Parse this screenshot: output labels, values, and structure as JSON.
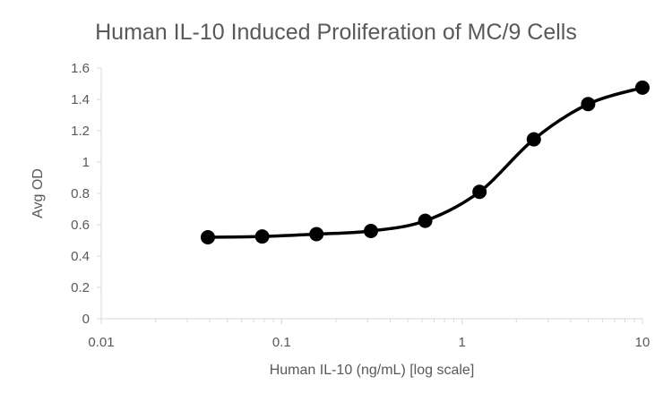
{
  "chart_data": {
    "type": "line",
    "title": "Human IL-10 Induced Proliferation of MC/9 Cells",
    "xlabel": "Human IL-10 (ng/mL) [log scale]",
    "ylabel": "Avg OD",
    "xscale": "log",
    "xlim": [
      0.01,
      10
    ],
    "ylim": [
      0,
      1.6
    ],
    "xticks": [
      "0.01",
      "0.1",
      "1",
      "10"
    ],
    "xtick_values": [
      0.01,
      0.1,
      1,
      10
    ],
    "yticks": [
      "0",
      "0.2",
      "0.4",
      "0.6",
      "0.8",
      "1",
      "1.2",
      "1.4",
      "1.6"
    ],
    "ytick_values": [
      0,
      0.2,
      0.4,
      0.6,
      0.8,
      1,
      1.2,
      1.4,
      1.6
    ],
    "grid": false,
    "legend": "none",
    "series": [
      {
        "color": "#000000",
        "x": [
          0.039,
          0.078,
          0.156,
          0.3125,
          0.625,
          1.25,
          2.5,
          5,
          10
        ],
        "y": [
          0.52,
          0.525,
          0.54,
          0.56,
          0.625,
          0.81,
          1.145,
          1.37,
          1.475
        ]
      }
    ]
  }
}
